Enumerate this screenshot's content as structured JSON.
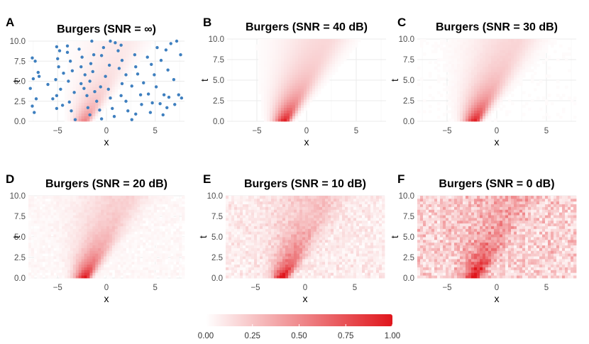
{
  "chart_data": [
    {
      "id": "A",
      "letter": "A",
      "type": "heatmap",
      "title": "Burgers (SNR = ∞)",
      "xlabel": "x",
      "ylabel": "t",
      "xlim": [
        -8,
        8
      ],
      "ylim": [
        0,
        10
      ],
      "xticks": [
        -5,
        0,
        5
      ],
      "xtick_labels": [
        "−5",
        "0",
        "5"
      ],
      "yticks": [
        0,
        2.5,
        5,
        7.5,
        10
      ],
      "ytick_labels": [
        "0.0",
        "2.5",
        "5.0",
        "7.5",
        "10.0"
      ],
      "noise_level": 0,
      "fill_mode": "full",
      "scatter_points": [
        [
          -7.6,
          7.9
        ],
        [
          -7.3,
          7.5
        ],
        [
          -7.0,
          6.1
        ],
        [
          -7.5,
          5.3
        ],
        [
          -6.9,
          5.6
        ],
        [
          -7.8,
          4.1
        ],
        [
          -7.2,
          2.8
        ],
        [
          -7.6,
          1.9
        ],
        [
          -7.4,
          1.1
        ],
        [
          -6.0,
          4.6
        ],
        [
          -5.5,
          2.8
        ],
        [
          -5.1,
          1.6
        ],
        [
          -4.5,
          2.0
        ],
        [
          -5.1,
          9.3
        ],
        [
          -4.8,
          8.8
        ],
        [
          -5.0,
          7.8
        ],
        [
          -4.9,
          6.8
        ],
        [
          -5.2,
          5.2
        ],
        [
          -4.4,
          6.0
        ],
        [
          -4.7,
          4.0
        ],
        [
          -5.1,
          3.2
        ],
        [
          -4.0,
          9.4
        ],
        [
          -4.0,
          8.6
        ],
        [
          -3.7,
          7.5
        ],
        [
          -3.5,
          6.3
        ],
        [
          -3.9,
          5.0
        ],
        [
          -3.3,
          3.6
        ],
        [
          -3.8,
          2.4
        ],
        [
          -3.6,
          1.3
        ],
        [
          -3.2,
          0.2
        ],
        [
          -2.8,
          9.0
        ],
        [
          -2.5,
          8.0
        ],
        [
          -2.6,
          6.8
        ],
        [
          -2.2,
          5.8
        ],
        [
          -2.6,
          4.7
        ],
        [
          -2.3,
          4.1
        ],
        [
          -2.0,
          3.2
        ],
        [
          -1.9,
          1.7
        ],
        [
          -1.7,
          0.8
        ],
        [
          -1.5,
          10.0
        ],
        [
          -1.3,
          8.3
        ],
        [
          -1.6,
          7.2
        ],
        [
          -1.4,
          6.2
        ],
        [
          -1.7,
          5.0
        ],
        [
          -1.2,
          3.7
        ],
        [
          -1.0,
          2.5
        ],
        [
          -0.7,
          1.4
        ],
        [
          -0.5,
          0.3
        ],
        [
          -0.3,
          9.2
        ],
        [
          -0.5,
          8.2
        ],
        [
          -0.6,
          4.3
        ],
        [
          0.3,
          7.0
        ],
        [
          -0.1,
          5.6
        ],
        [
          0.2,
          4.0
        ],
        [
          0.4,
          2.9
        ],
        [
          0.6,
          1.6
        ],
        [
          0.8,
          0.6
        ],
        [
          0.4,
          10.0
        ],
        [
          0.9,
          9.8
        ],
        [
          1.2,
          8.8
        ],
        [
          1.5,
          9.5
        ],
        [
          1.6,
          7.6
        ],
        [
          1.3,
          6.6
        ],
        [
          2.0,
          5.8
        ],
        [
          1.6,
          4.7
        ],
        [
          1.5,
          3.2
        ],
        [
          2.0,
          2.5
        ],
        [
          2.2,
          1.3
        ],
        [
          2.6,
          0.2
        ],
        [
          2.9,
          8.3
        ],
        [
          3.0,
          6.8
        ],
        [
          3.2,
          5.9
        ],
        [
          2.6,
          4.4
        ],
        [
          3.5,
          3.3
        ],
        [
          3.6,
          2.1
        ],
        [
          3.0,
          0.9
        ],
        [
          3.8,
          4.8
        ],
        [
          4.2,
          8.0
        ],
        [
          4.6,
          7.1
        ],
        [
          4.9,
          5.8
        ],
        [
          4.3,
          3.4
        ],
        [
          4.7,
          2.3
        ],
        [
          4.5,
          1.1
        ],
        [
          5.2,
          9.2
        ],
        [
          5.6,
          7.6
        ],
        [
          5.1,
          4.3
        ],
        [
          5.9,
          3.3
        ],
        [
          5.5,
          2.2
        ],
        [
          6.1,
          8.9
        ],
        [
          6.3,
          6.4
        ],
        [
          6.6,
          9.7
        ],
        [
          6.9,
          5.2
        ],
        [
          7.2,
          10.0
        ],
        [
          7.6,
          8.3
        ],
        [
          7.0,
          2.1
        ],
        [
          7.4,
          3.3
        ],
        [
          7.7,
          2.9
        ],
        [
          6.4,
          3.0
        ],
        [
          5.8,
          0.8
        ],
        [
          6.2,
          1.7
        ]
      ]
    },
    {
      "id": "B",
      "letter": "B",
      "type": "heatmap",
      "title": "Burgers (SNR = 40 dB)",
      "xlabel": "x",
      "ylabel": "t",
      "xlim": [
        -8,
        8
      ],
      "ylim": [
        0,
        10
      ],
      "xticks": [
        -5,
        0,
        5
      ],
      "xtick_labels": [
        "−5",
        "0",
        "5"
      ],
      "yticks": [
        0,
        2.5,
        5,
        7.5,
        10
      ],
      "ytick_labels": [
        "0.0",
        "2.5",
        "5.0",
        "7.5",
        "10.0"
      ],
      "noise_level": 0.004,
      "fill_mode": "field"
    },
    {
      "id": "C",
      "letter": "C",
      "type": "heatmap",
      "title": "Burgers (SNR = 30 dB)",
      "xlabel": "x",
      "ylabel": "t",
      "xlim": [
        -8,
        8
      ],
      "ylim": [
        0,
        10
      ],
      "xticks": [
        -5,
        0,
        5
      ],
      "xtick_labels": [
        "−5",
        "0",
        "5"
      ],
      "yticks": [
        0,
        2.5,
        5,
        7.5,
        10
      ],
      "ytick_labels": [
        "0.0",
        "2.5",
        "5.0",
        "7.5",
        "10.0"
      ],
      "noise_level": 0.02,
      "fill_mode": "field"
    },
    {
      "id": "D",
      "letter": "D",
      "type": "heatmap",
      "title": "Burgers (SNR = 20 dB)",
      "xlabel": "x",
      "ylabel": "t",
      "xlim": [
        -8,
        8
      ],
      "ylim": [
        0,
        10
      ],
      "xticks": [
        -5,
        0,
        5
      ],
      "xtick_labels": [
        "−5",
        "0",
        "5"
      ],
      "yticks": [
        0,
        2.5,
        5,
        7.5,
        10
      ],
      "ytick_labels": [
        "0.0",
        "2.5",
        "5.0",
        "7.5",
        "10.0"
      ],
      "noise_level": 0.07,
      "fill_mode": "field"
    },
    {
      "id": "E",
      "letter": "E",
      "type": "heatmap",
      "title": "Burgers (SNR = 10 dB)",
      "xlabel": "x",
      "ylabel": "t",
      "xlim": [
        -8,
        8
      ],
      "ylim": [
        0,
        10
      ],
      "xticks": [
        -5,
        0,
        5
      ],
      "xtick_labels": [
        "−5",
        "0",
        "5"
      ],
      "yticks": [
        0,
        2.5,
        5,
        7.5,
        10
      ],
      "ytick_labels": [
        "0.0",
        "2.5",
        "5.0",
        "7.5",
        "10.0"
      ],
      "noise_level": 0.2,
      "fill_mode": "field"
    },
    {
      "id": "F",
      "letter": "F",
      "type": "heatmap",
      "title": "Burgers (SNR = 0 dB)",
      "xlabel": "x",
      "ylabel": "t",
      "xlim": [
        -8,
        8
      ],
      "ylim": [
        0,
        10
      ],
      "xticks": [
        -5,
        0,
        5
      ],
      "xtick_labels": [
        "−5",
        "0",
        "5"
      ],
      "yticks": [
        0,
        2.5,
        5,
        7.5,
        10
      ],
      "ytick_labels": [
        "0.0",
        "2.5",
        "5.0",
        "7.5",
        "10.0"
      ],
      "noise_level": 0.45,
      "fill_mode": "field"
    }
  ],
  "colorbar": {
    "min": 0.0,
    "max": 1.0,
    "ticks": [
      0.0,
      0.25,
      0.5,
      0.75,
      1.0
    ],
    "tick_labels": [
      "0.00",
      "0.25",
      "0.50",
      "0.75",
      "1.00"
    ],
    "color_low": "#ffffff",
    "color_high": "#e0161c"
  },
  "colors": {
    "heat_max": "#e0161c",
    "scatter_point": "#3e7fbf",
    "grid": "#ebebeb"
  }
}
